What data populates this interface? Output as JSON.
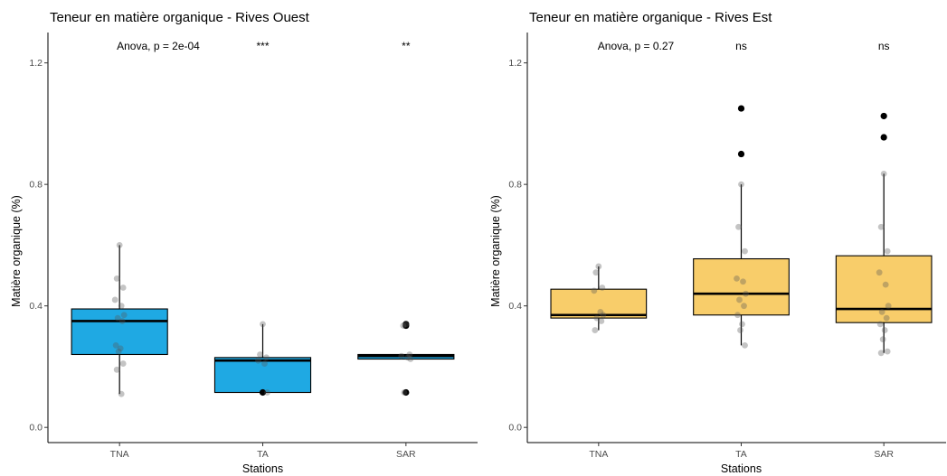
{
  "chart_data": [
    {
      "type": "boxplot",
      "title": "Teneur en matière organique - Rives Ouest",
      "xlabel": "Stations",
      "ylabel": "Matière organique (%)",
      "ylim": [
        -0.05,
        1.3
      ],
      "yticks": [
        "0.0",
        "0.4",
        "0.8",
        "1.2"
      ],
      "fill_color": "#1fa9e3",
      "anova_label": "Anova, p = 2e-04",
      "categories": [
        "TNA",
        "TA",
        "SAR"
      ],
      "signif": [
        "",
        "***",
        "**"
      ],
      "boxes": [
        {
          "q1": 0.24,
          "median": 0.35,
          "q3": 0.39,
          "whisker_low": 0.11,
          "whisker_high": 0.6,
          "outliers": []
        },
        {
          "q1": 0.115,
          "median": 0.22,
          "q3": 0.23,
          "whisker_low": 0.115,
          "whisker_high": 0.34,
          "outliers": [
            0.115
          ]
        },
        {
          "q1": 0.225,
          "median": 0.235,
          "q3": 0.24,
          "whisker_low": 0.225,
          "whisker_high": 0.24,
          "outliers": [
            0.115,
            0.335,
            0.34
          ]
        }
      ],
      "points": [
        [
          0.6,
          0.49,
          0.46,
          0.42,
          0.4,
          0.37,
          0.36,
          0.35,
          0.27,
          0.26,
          0.25,
          0.21,
          0.19,
          0.11
        ],
        [
          0.34,
          0.24,
          0.23,
          0.22,
          0.21,
          0.115
        ],
        [
          0.34,
          0.335,
          0.24,
          0.235,
          0.23,
          0.225,
          0.115
        ]
      ]
    },
    {
      "type": "boxplot",
      "title": "Teneur en matière organique - Rives Est",
      "xlabel": "Stations",
      "ylabel": "Matière organique (%)",
      "ylim": [
        -0.05,
        1.3
      ],
      "yticks": [
        "0.0",
        "0.4",
        "0.8",
        "1.2"
      ],
      "fill_color": "#f8cd6a",
      "anova_label": "Anova, p = 0.27",
      "categories": [
        "TNA",
        "TA",
        "SAR"
      ],
      "signif": [
        "",
        "ns",
        "ns"
      ],
      "boxes": [
        {
          "q1": 0.36,
          "median": 0.37,
          "q3": 0.455,
          "whisker_low": 0.32,
          "whisker_high": 0.53,
          "outliers": []
        },
        {
          "q1": 0.37,
          "median": 0.44,
          "q3": 0.555,
          "whisker_low": 0.27,
          "whisker_high": 0.8,
          "outliers": [
            0.9,
            1.05
          ]
        },
        {
          "q1": 0.345,
          "median": 0.39,
          "q3": 0.565,
          "whisker_low": 0.245,
          "whisker_high": 0.835,
          "outliers": [
            0.955,
            1.025
          ]
        }
      ],
      "points": [
        [
          0.53,
          0.51,
          0.46,
          0.45,
          0.38,
          0.37,
          0.36,
          0.35,
          0.32
        ],
        [
          0.8,
          0.66,
          0.58,
          0.49,
          0.48,
          0.44,
          0.42,
          0.4,
          0.37,
          0.34,
          0.32,
          0.27
        ],
        [
          0.835,
          0.66,
          0.58,
          0.51,
          0.47,
          0.4,
          0.38,
          0.36,
          0.34,
          0.32,
          0.29,
          0.25,
          0.245
        ]
      ]
    }
  ]
}
